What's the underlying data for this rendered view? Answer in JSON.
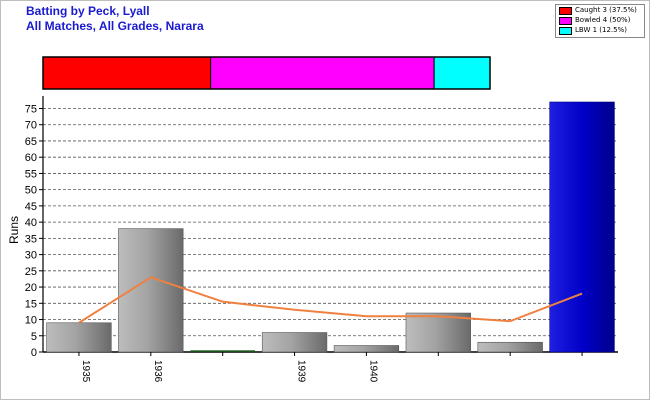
{
  "header": {
    "title": "Batting by Peck, Lyall",
    "subtitle": "All Matches, All Grades, Narara"
  },
  "colors": {
    "title": "#1a1ad0",
    "caught": "#ff0000",
    "bowled": "#ff00ff",
    "lbw": "#00ffff",
    "bar_gray": "#a0a0a0",
    "bar_blue": "#0000cc",
    "trend_line": "#f08040"
  },
  "legend": {
    "items": [
      {
        "label": "Caught 3 (37.5%)",
        "color": "#ff0000"
      },
      {
        "label": "Bowled 4 (50%)",
        "color": "#ff00ff"
      },
      {
        "label": "LBW 1 (12.5%)",
        "color": "#00ffff"
      }
    ]
  },
  "chart_data": [
    {
      "type": "bar",
      "orientation": "horizontal-stacked",
      "series": [
        {
          "name": "Caught",
          "value": 3,
          "percent": 37.5
        },
        {
          "name": "Bowled",
          "value": 4,
          "percent": 50
        },
        {
          "name": "LBW",
          "value": 1,
          "percent": 12.5
        }
      ]
    },
    {
      "type": "bar",
      "ylabel": "Runs",
      "ylim": [
        0,
        77
      ],
      "yticks": [
        0,
        5,
        10,
        15,
        20,
        25,
        30,
        35,
        40,
        45,
        50,
        55,
        60,
        65,
        70,
        75
      ],
      "grid": "horizontal-dashed",
      "categories": [
        "1935",
        "1936",
        "",
        "1939",
        "1940",
        "",
        "",
        ""
      ],
      "values": [
        9,
        38,
        0,
        6,
        2,
        12,
        3,
        77
      ],
      "bar_highlight_index": 7,
      "trend_line": [
        9,
        23,
        15.5,
        13,
        11,
        11,
        9.5,
        18
      ]
    }
  ]
}
